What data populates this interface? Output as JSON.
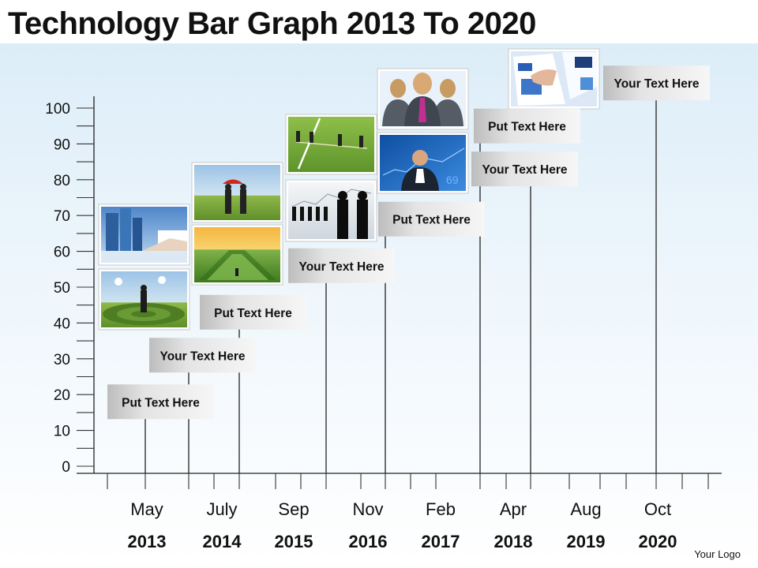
{
  "title": "Technology Bar Graph 2013 To 2020",
  "logo_text": "Your Logo",
  "chart_data": {
    "type": "bar",
    "ylim": [
      0,
      100
    ],
    "y_ticks": [
      "0",
      "10",
      "20",
      "30",
      "40",
      "50",
      "60",
      "70",
      "80",
      "90",
      "100"
    ],
    "months": [
      "May",
      "July",
      "Sep",
      "Nov",
      "Feb",
      "Apr",
      "Aug",
      "Oct"
    ],
    "years": [
      "2013",
      "2014",
      "2015",
      "2016",
      "2017",
      "2018",
      "2019",
      "2020"
    ],
    "series": [
      {
        "label": "Put Text Here",
        "value": 18
      },
      {
        "label": "Your Text Here",
        "value": 31
      },
      {
        "label": "Put Text Here",
        "value": 43
      },
      {
        "label": "Your Text Here",
        "value": 56
      },
      {
        "label": "Put Text Here",
        "value": 69
      },
      {
        "label": "Put Text Here",
        "value": 95
      },
      {
        "label": "Your Text Here",
        "value": 83
      },
      {
        "label": "Your Text Here",
        "value": 107
      }
    ]
  }
}
